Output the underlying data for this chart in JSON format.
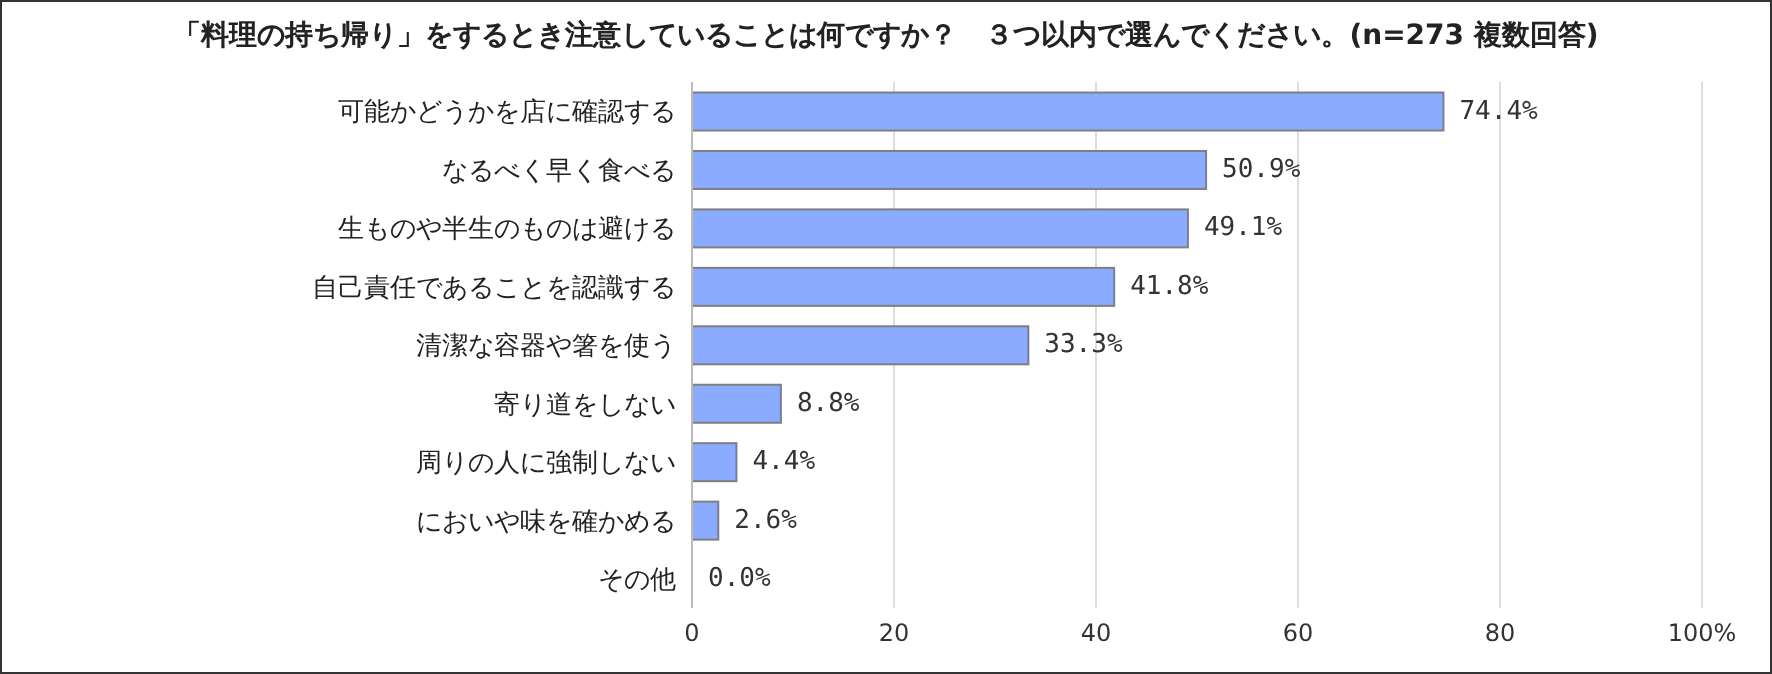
{
  "chart_data": {
    "type": "bar",
    "orientation": "horizontal",
    "title": "「料理の持ち帰り」をするとき注意していることは何ですか？　３つ以内で選んでください。(n=273 複数回答)",
    "categories": [
      "可能かどうかを店に確認する",
      "なるべく早く食べる",
      "生ものや半生のものは避ける",
      "自己責任であることを認識する",
      "清潔な容器や箸を使う",
      "寄り道をしない",
      "周りの人に強制しない",
      "においや味を確かめる",
      "その他"
    ],
    "values": [
      74.4,
      50.9,
      49.1,
      41.8,
      33.3,
      8.8,
      4.4,
      2.6,
      0.0
    ],
    "value_labels": [
      "74.4%",
      "50.9%",
      "49.1%",
      "41.8%",
      "33.3%",
      "8.8%",
      "4.4%",
      "2.6%",
      "0.0%"
    ],
    "color": "#8aabff",
    "xlim": [
      0,
      100
    ],
    "xticks": [
      0,
      20,
      40,
      60,
      80,
      {
        "value": 100,
        "label": "100%"
      }
    ],
    "grid": "x"
  }
}
